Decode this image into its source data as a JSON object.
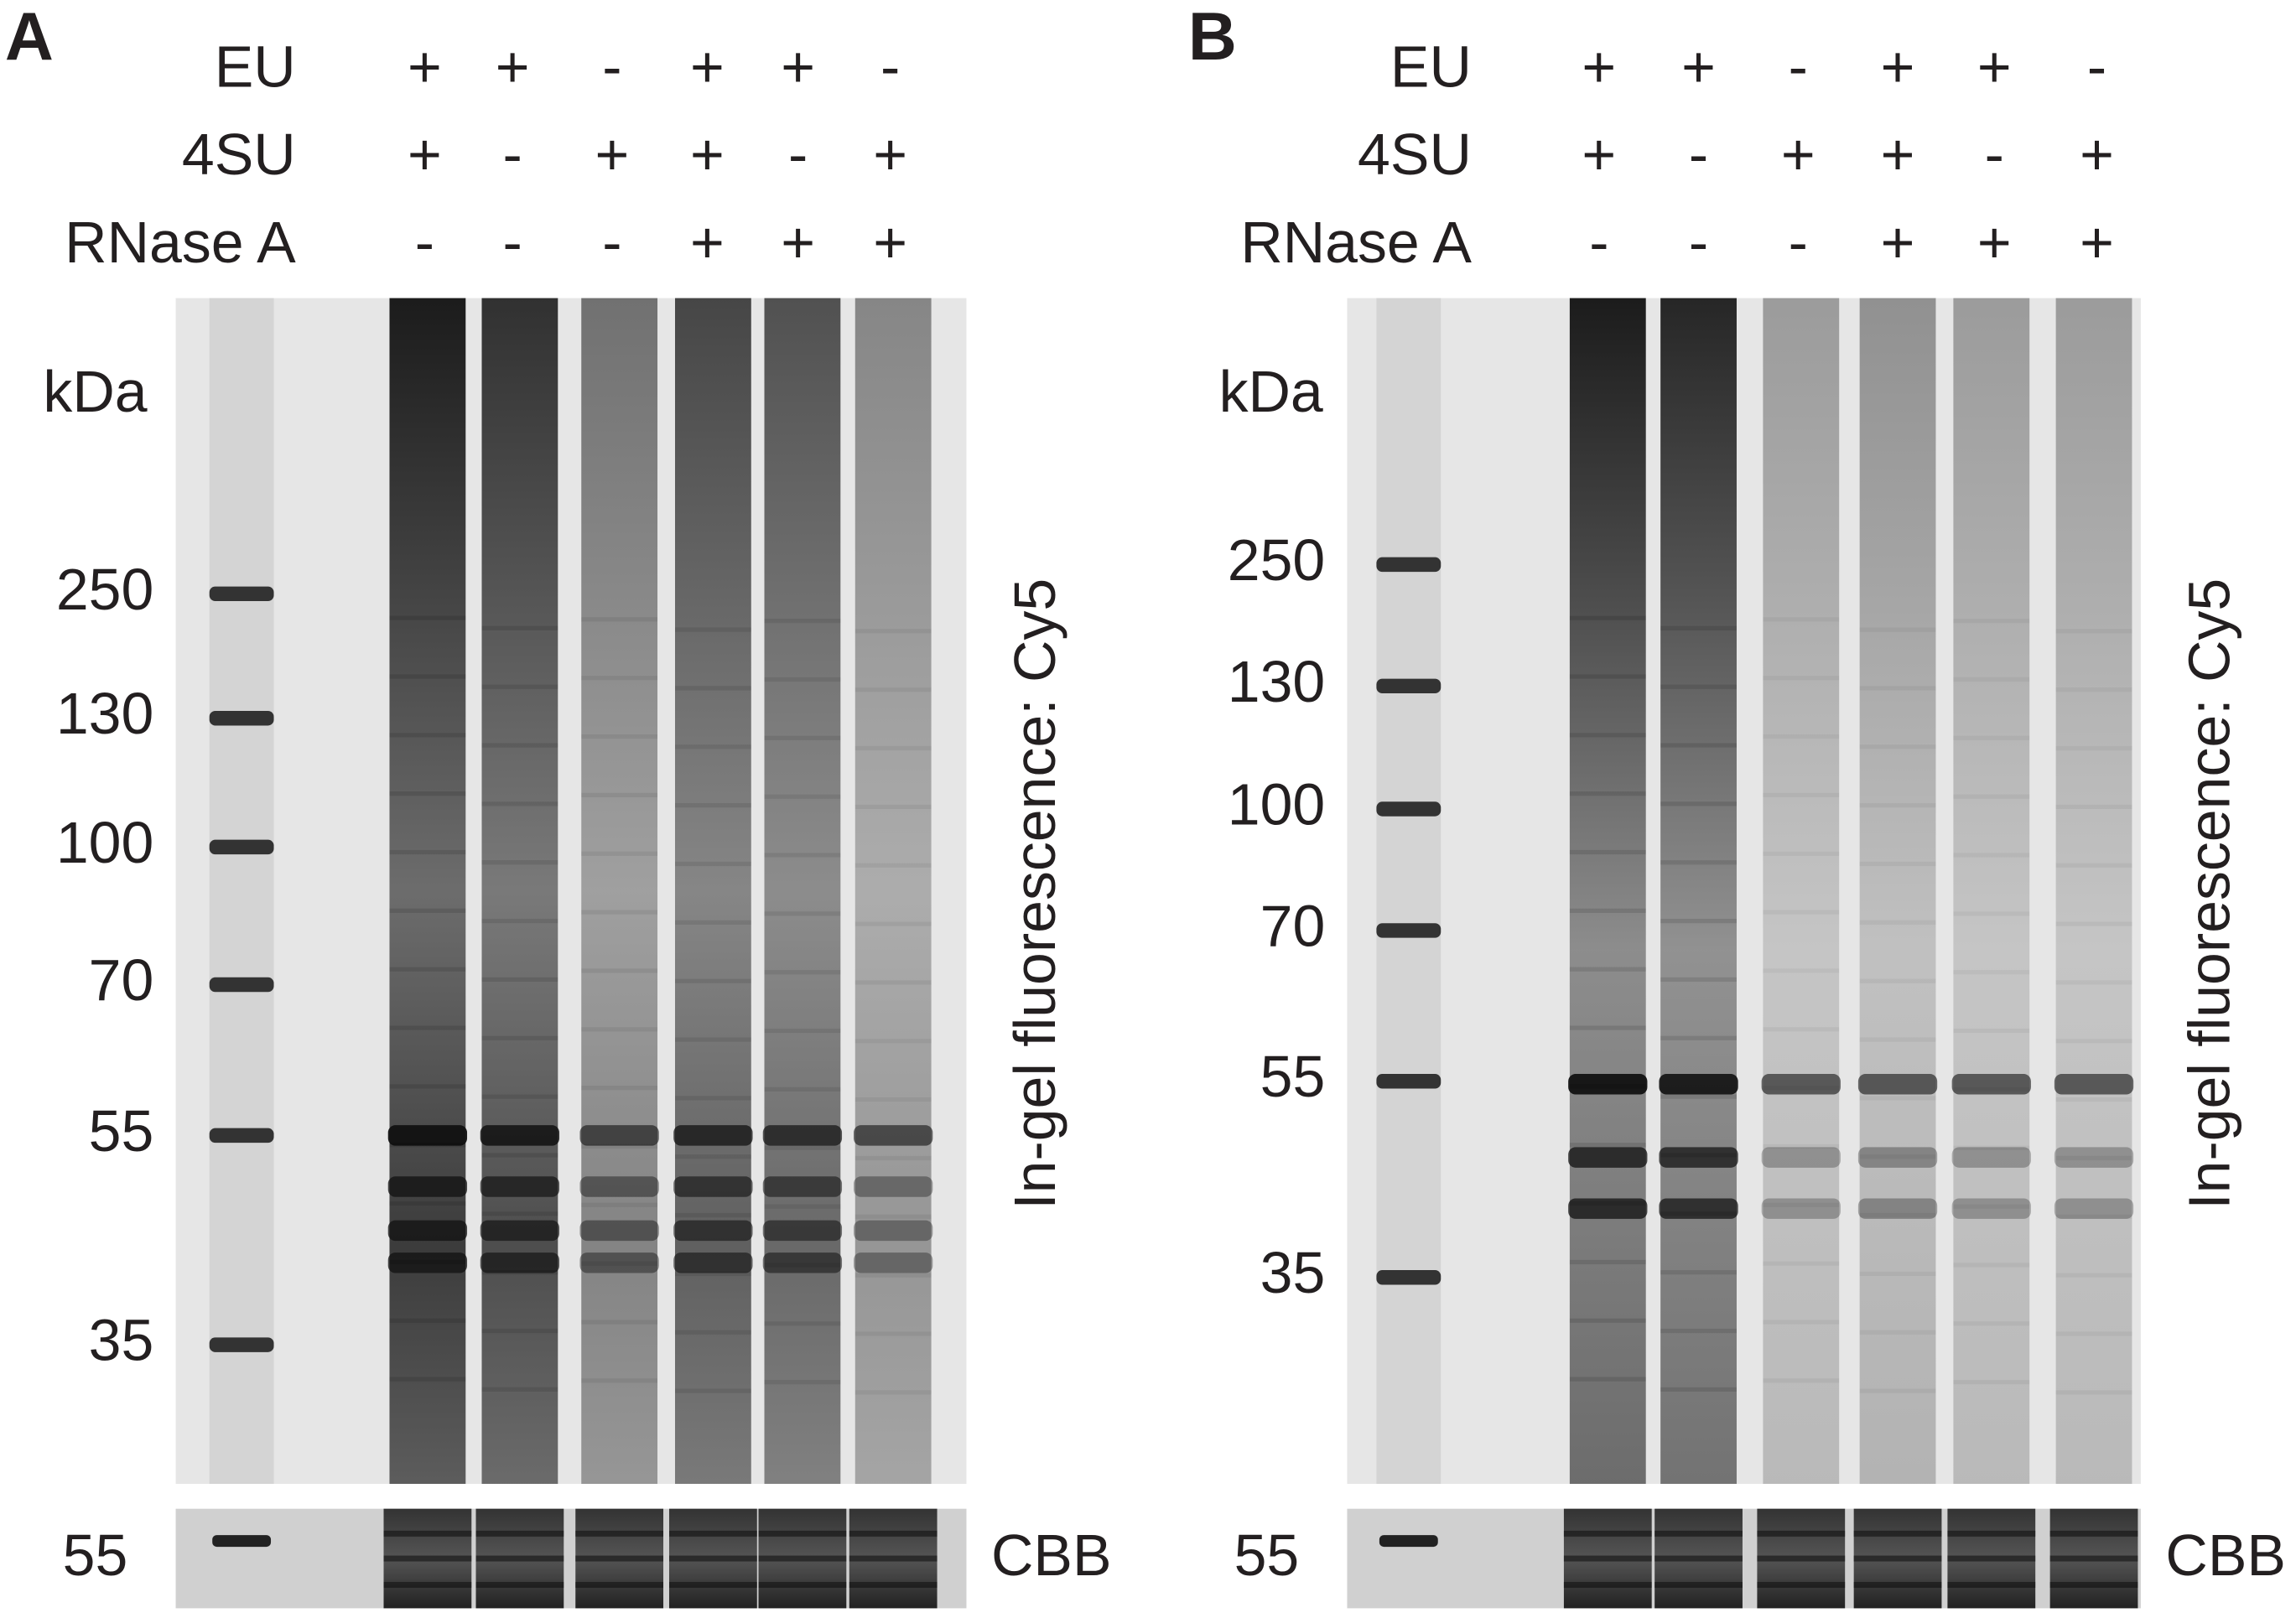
{
  "panels": [
    {
      "label": "A",
      "rows": [
        {
          "name": "EU",
          "signs": [
            "+",
            "+",
            "-",
            "+",
            "+",
            "-"
          ]
        },
        {
          "name": "4SU",
          "signs": [
            "+",
            "-",
            "+",
            "+",
            "-",
            "+"
          ]
        },
        {
          "name": "RNase A",
          "signs": [
            "-",
            "-",
            "-",
            "+",
            "+",
            "+"
          ]
        }
      ],
      "unit": "kDa",
      "markers": [
        "250",
        "130",
        "100",
        "70",
        "55",
        "35"
      ],
      "side_label": "In-gel fluorescence: Cy5",
      "loading_marker": "55",
      "loading_label": "CBB"
    },
    {
      "label": "B",
      "rows": [
        {
          "name": "EU",
          "signs": [
            "+",
            "+",
            "-",
            "+",
            "+",
            "-"
          ]
        },
        {
          "name": "4SU",
          "signs": [
            "+",
            "-",
            "+",
            "+",
            "-",
            "+"
          ]
        },
        {
          "name": "RNase A",
          "signs": [
            "-",
            "-",
            "-",
            "+",
            "+",
            "+"
          ]
        }
      ],
      "unit": "kDa",
      "markers": [
        "250",
        "130",
        "100",
        "70",
        "55",
        "35"
      ],
      "side_label": "In-gel fluorescence: Cy5",
      "loading_marker": "55",
      "loading_label": "CBB"
    }
  ]
}
